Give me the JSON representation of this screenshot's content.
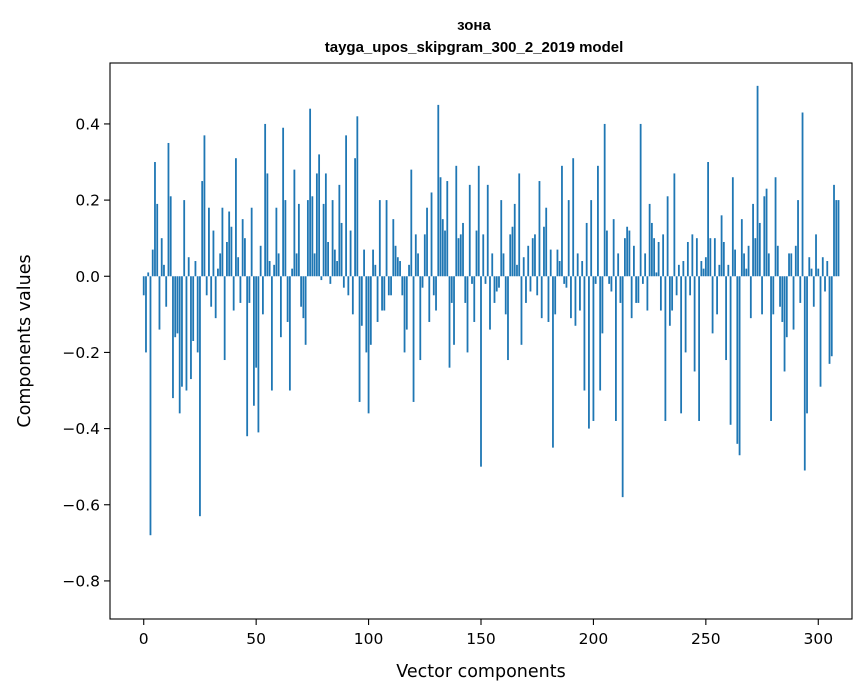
{
  "chart_data": {
    "type": "bar",
    "title": "зона",
    "subtitle": "tayga_upos_skipgram_300_2_2019 model",
    "xlabel": "Vector components",
    "ylabel": "Components values",
    "xlim": [
      -15,
      315
    ],
    "ylim": [
      -0.9,
      0.56
    ],
    "xticks": [
      0,
      50,
      100,
      150,
      200,
      250,
      300
    ],
    "yticks": [
      -0.8,
      -0.6,
      -0.4,
      -0.2,
      0.0,
      0.2,
      0.4
    ],
    "ytick_labels": [
      "−0.8",
      "−0.6",
      "−0.4",
      "−0.2",
      "0.0",
      "0.2",
      "0.4"
    ],
    "bar_color": "#1f77b4",
    "grid": false,
    "values": [
      -0.05,
      -0.2,
      0.01,
      -0.68,
      0.07,
      0.3,
      0.19,
      -0.14,
      0.1,
      0.03,
      -0.08,
      0.35,
      0.21,
      -0.32,
      -0.16,
      -0.15,
      -0.36,
      -0.29,
      0.2,
      -0.3,
      0.05,
      -0.27,
      -0.17,
      0.04,
      -0.2,
      -0.63,
      0.25,
      0.37,
      -0.05,
      0.18,
      -0.08,
      0.12,
      -0.11,
      0.02,
      0.06,
      0.18,
      -0.22,
      0.09,
      0.17,
      0.13,
      -0.09,
      0.31,
      0.05,
      -0.07,
      0.15,
      0.1,
      -0.42,
      -0.07,
      0.18,
      -0.34,
      -0.24,
      -0.41,
      0.08,
      -0.1,
      0.4,
      0.27,
      0.04,
      -0.3,
      0.03,
      0.18,
      0.06,
      -0.16,
      0.39,
      0.2,
      -0.12,
      -0.3,
      0.02,
      0.28,
      0.06,
      0.19,
      -0.08,
      -0.11,
      -0.18,
      0.2,
      0.44,
      0.21,
      0.06,
      0.27,
      0.32,
      -0.01,
      0.19,
      0.27,
      0.09,
      -0.02,
      0.2,
      0.07,
      0.04,
      0.24,
      0.14,
      -0.03,
      0.37,
      -0.05,
      0.12,
      -0.1,
      0.31,
      0.42,
      -0.33,
      -0.13,
      0.07,
      -0.2,
      -0.36,
      -0.18,
      0.07,
      0.03,
      -0.12,
      0.2,
      -0.09,
      -0.09,
      0.2,
      -0.05,
      -0.05,
      0.15,
      0.08,
      0.05,
      0.04,
      -0.05,
      -0.2,
      -0.14,
      0.03,
      0.28,
      -0.33,
      0.11,
      0.06,
      -0.22,
      -0.03,
      0.11,
      0.18,
      -0.12,
      0.22,
      -0.05,
      -0.09,
      0.45,
      0.26,
      0.15,
      0.12,
      0.25,
      -0.24,
      -0.07,
      -0.18,
      0.29,
      0.1,
      0.11,
      0.14,
      -0.07,
      -0.2,
      0.24,
      -0.02,
      -0.12,
      0.12,
      0.29,
      -0.5,
      0.11,
      -0.02,
      0.24,
      -0.14,
      0.06,
      -0.07,
      -0.04,
      -0.03,
      0.2,
      0.06,
      -0.1,
      -0.22,
      0.11,
      0.13,
      0.19,
      0.03,
      0.27,
      -0.18,
      0.05,
      -0.07,
      0.08,
      -0.04,
      0.1,
      0.11,
      -0.05,
      0.25,
      -0.11,
      0.13,
      0.18,
      -0.12,
      0.07,
      -0.45,
      -0.1,
      0.07,
      0.04,
      0.29,
      -0.02,
      -0.03,
      0.2,
      -0.11,
      0.31,
      -0.13,
      0.06,
      -0.09,
      0.04,
      -0.3,
      0.14,
      -0.4,
      0.2,
      -0.38,
      -0.02,
      0.29,
      -0.3,
      -0.15,
      0.4,
      0.12,
      -0.02,
      -0.04,
      0.15,
      -0.38,
      0.06,
      -0.07,
      -0.58,
      0.1,
      0.13,
      0.12,
      -0.11,
      0.08,
      -0.07,
      -0.07,
      0.4,
      -0.02,
      0.06,
      -0.09,
      0.19,
      0.14,
      0.1,
      0.01,
      0.09,
      -0.09,
      0.11,
      -0.38,
      0.21,
      -0.13,
      -0.09,
      0.27,
      -0.05,
      0.03,
      -0.36,
      0.04,
      -0.2,
      0.09,
      -0.05,
      0.11,
      -0.25,
      0.1,
      -0.38,
      0.04,
      0.02,
      0.05,
      0.3,
      0.1,
      -0.15,
      0.1,
      -0.1,
      0.03,
      0.16,
      0.09,
      -0.22,
      0.03,
      -0.39,
      0.26,
      0.07,
      -0.44,
      -0.47,
      0.15,
      0.06,
      0.02,
      0.08,
      -0.11,
      0.19,
      0.1,
      0.5,
      0.14,
      -0.1,
      0.21,
      0.23,
      0.06,
      -0.38,
      -0.1,
      0.26,
      0.08,
      -0.08,
      -0.12,
      -0.25,
      -0.16,
      0.06,
      0.06,
      -0.14,
      0.08,
      0.2,
      -0.07,
      0.43,
      -0.51,
      -0.36,
      0.05,
      0.02,
      -0.08,
      0.11,
      0.02,
      -0.29,
      0.05,
      -0.04,
      0.04,
      -0.23,
      -0.21,
      0.24,
      0.2,
      0.2
    ]
  }
}
